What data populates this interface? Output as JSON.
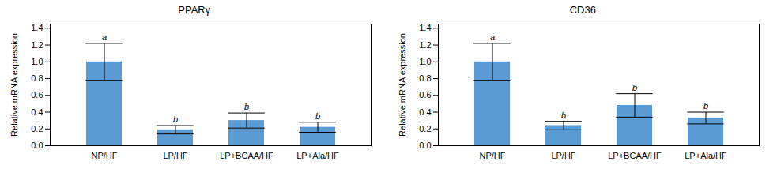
{
  "chart_data": [
    {
      "type": "bar",
      "title": "PPARγ",
      "categories": [
        "NP/HF",
        "LP/HF",
        "LP+BCAA/HF",
        "LP+Ala/HF"
      ],
      "values": [
        1.0,
        0.19,
        0.3,
        0.22
      ],
      "errors": [
        0.22,
        0.05,
        0.09,
        0.06
      ],
      "letters": [
        "a",
        "b",
        "b",
        "b"
      ],
      "ylabel": "Relative mRNA expression",
      "color": "#5b9bd5",
      "ylim": [
        0.0,
        1.45
      ],
      "yticks": [
        {
          "value": 0,
          "label": "0.0"
        },
        0.2,
        0.4,
        0.6,
        0.8,
        {
          "value": 1,
          "label": "1.0"
        },
        1.2,
        1.4
      ]
    },
    {
      "type": "bar",
      "title": "CD36",
      "categories": [
        "NP/HF",
        "LP/HF",
        "LP+BCAA/HF",
        "LP+Ala/HF"
      ],
      "values": [
        1.0,
        0.24,
        0.48,
        0.33
      ],
      "errors": [
        0.22,
        0.05,
        0.14,
        0.07
      ],
      "letters": [
        "a",
        "b",
        "b",
        "b"
      ],
      "ylabel": "Relative mRNA expression",
      "color": "#5b9bd5",
      "ylim": [
        0.0,
        1.45
      ],
      "yticks": [
        {
          "value": 0,
          "label": "0.0"
        },
        0.2,
        0.4,
        0.6,
        0.8,
        {
          "value": 1,
          "label": "1.0"
        },
        1.2,
        1.4
      ]
    }
  ]
}
